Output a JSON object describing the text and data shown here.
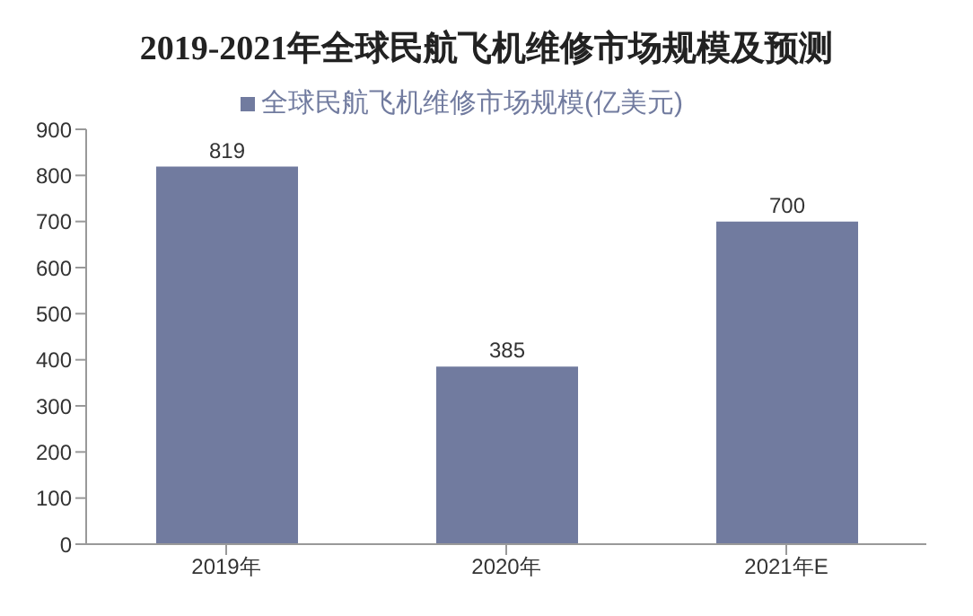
{
  "chart_data": {
    "type": "bar",
    "title": "2019-2021年全球民航飞机维修市场规模及预测",
    "categories": [
      "2019年",
      "2020年",
      "2021年E"
    ],
    "series": [
      {
        "name": "全球民航飞机维修市场规模(亿美元)",
        "color": "#717b9f",
        "values": [
          819,
          385,
          700
        ]
      }
    ],
    "ylim": [
      0,
      900
    ],
    "yticks": [
      0,
      100,
      200,
      300,
      400,
      500,
      600,
      700,
      800,
      900
    ],
    "grid": false,
    "legend": "top",
    "data_labels": true
  }
}
